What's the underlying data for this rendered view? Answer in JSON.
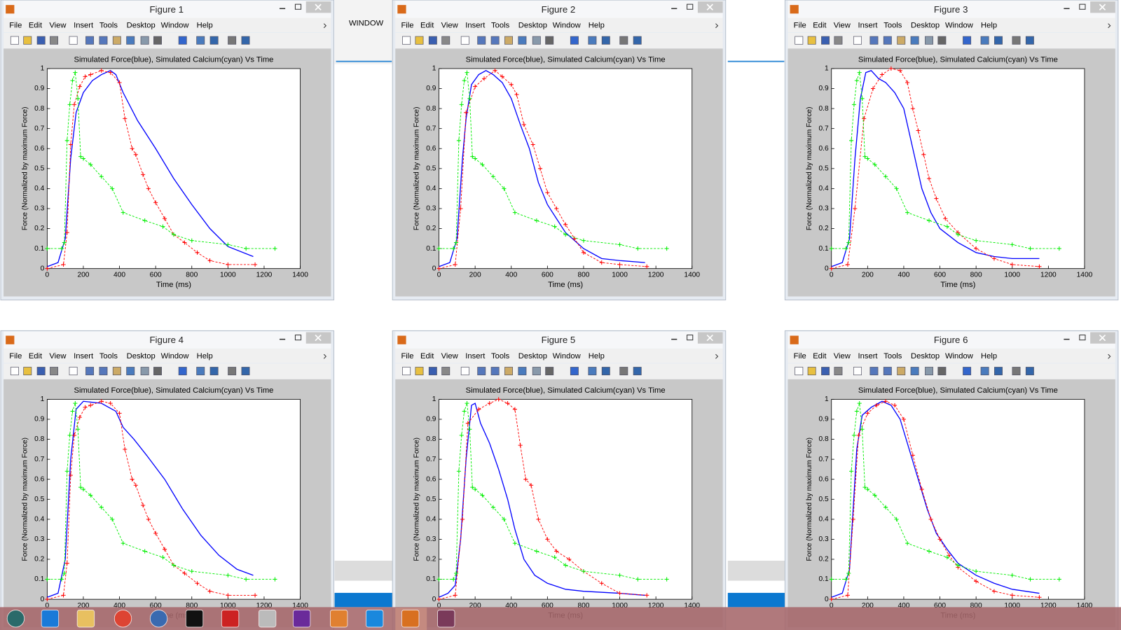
{
  "menu": [
    "File",
    "Edit",
    "View",
    "Insert",
    "Tools",
    "Desktop",
    "Window",
    "Help"
  ],
  "background_label": "WINDOW",
  "axes": {
    "title": "Simulated Force(blue), Simulated Calcium(cyan) Vs Time",
    "xlabel": "Time (ms)",
    "ylabel": "Force (Normalized by maximum Force)",
    "xlim": [
      0,
      1400
    ],
    "ylim": [
      0,
      1
    ],
    "xticks": [
      0,
      200,
      400,
      600,
      800,
      1000,
      1200,
      1400
    ],
    "yticks": [
      0,
      0.1,
      0.2,
      0.3,
      0.4,
      0.5,
      0.6,
      0.7,
      0.8,
      0.9,
      1
    ]
  },
  "windows": [
    {
      "title": "Figure 1",
      "type": "line",
      "series": [
        {
          "color": "#0000ff",
          "line": "solid",
          "x": [
            0,
            60,
            100,
            130,
            160,
            200,
            250,
            300,
            350,
            380,
            420,
            500,
            600,
            700,
            800,
            900,
            1000,
            1140
          ],
          "values": [
            0.01,
            0.03,
            0.15,
            0.55,
            0.78,
            0.88,
            0.94,
            0.97,
            0.99,
            0.97,
            0.88,
            0.74,
            0.6,
            0.45,
            0.32,
            0.2,
            0.11,
            0.06
          ]
        },
        {
          "color": "#ff0000",
          "line": "dashed",
          "marker": "+",
          "x": [
            0,
            90,
            110,
            130,
            150,
            180,
            210,
            240,
            300,
            350,
            400,
            430,
            470,
            490,
            530,
            560,
            600,
            650,
            700,
            760,
            830,
            900,
            1000,
            1150
          ],
          "values": [
            0,
            0.02,
            0.18,
            0.62,
            0.82,
            0.91,
            0.96,
            0.97,
            0.99,
            0.98,
            0.93,
            0.75,
            0.6,
            0.57,
            0.47,
            0.4,
            0.33,
            0.25,
            0.17,
            0.13,
            0.08,
            0.04,
            0.02,
            0.02
          ]
        },
        {
          "color": "#00ee00",
          "line": "dashed",
          "marker": "+",
          "x": [
            0,
            80,
            95,
            110,
            125,
            140,
            155,
            170,
            185,
            200,
            240,
            300,
            360,
            420,
            540,
            640,
            700,
            800,
            1000,
            1100,
            1260
          ],
          "values": [
            0.1,
            0.1,
            0.13,
            0.64,
            0.82,
            0.94,
            0.98,
            0.85,
            0.56,
            0.55,
            0.52,
            0.46,
            0.4,
            0.28,
            0.24,
            0.21,
            0.17,
            0.14,
            0.12,
            0.1,
            0.1
          ]
        }
      ]
    },
    {
      "title": "Figure 2",
      "type": "line",
      "series": [
        {
          "color": "#0000ff",
          "line": "solid",
          "x": [
            0,
            60,
            100,
            130,
            150,
            180,
            220,
            260,
            300,
            350,
            400,
            450,
            500,
            550,
            600,
            650,
            700,
            800,
            900,
            1000,
            1140
          ],
          "values": [
            0.01,
            0.03,
            0.15,
            0.55,
            0.75,
            0.92,
            0.97,
            0.99,
            0.97,
            0.93,
            0.85,
            0.72,
            0.6,
            0.43,
            0.32,
            0.25,
            0.18,
            0.1,
            0.05,
            0.04,
            0.03
          ]
        },
        {
          "color": "#ff0000",
          "line": "dashed",
          "marker": "+",
          "x": [
            0,
            90,
            120,
            150,
            200,
            250,
            310,
            350,
            400,
            430,
            470,
            520,
            560,
            600,
            650,
            700,
            750,
            800,
            900,
            1000,
            1150
          ],
          "values": [
            0,
            0.02,
            0.3,
            0.78,
            0.91,
            0.95,
            0.99,
            0.96,
            0.92,
            0.87,
            0.72,
            0.62,
            0.5,
            0.38,
            0.3,
            0.22,
            0.15,
            0.08,
            0.03,
            0.02,
            0.01
          ]
        },
        {
          "color": "#00ee00",
          "line": "dashed",
          "marker": "+",
          "x": [
            0,
            80,
            95,
            110,
            125,
            140,
            155,
            170,
            185,
            200,
            240,
            300,
            360,
            420,
            540,
            640,
            700,
            800,
            1000,
            1100,
            1260
          ],
          "values": [
            0.1,
            0.1,
            0.13,
            0.64,
            0.82,
            0.94,
            0.98,
            0.85,
            0.56,
            0.55,
            0.52,
            0.46,
            0.4,
            0.28,
            0.24,
            0.21,
            0.17,
            0.14,
            0.12,
            0.1,
            0.1
          ]
        }
      ]
    },
    {
      "title": "Figure 3",
      "type": "line",
      "series": [
        {
          "color": "#0000ff",
          "line": "solid",
          "x": [
            0,
            60,
            100,
            130,
            160,
            190,
            220,
            260,
            300,
            350,
            400,
            450,
            500,
            550,
            600,
            700,
            800,
            900,
            1000,
            1150
          ],
          "values": [
            0.01,
            0.03,
            0.15,
            0.55,
            0.85,
            0.98,
            0.99,
            0.95,
            0.93,
            0.88,
            0.8,
            0.6,
            0.4,
            0.28,
            0.2,
            0.13,
            0.08,
            0.06,
            0.05,
            0.05
          ]
        },
        {
          "color": "#ff0000",
          "line": "dashed",
          "marker": "+",
          "x": [
            0,
            90,
            130,
            180,
            230,
            280,
            330,
            380,
            420,
            450,
            480,
            510,
            540,
            580,
            630,
            700,
            800,
            900,
            1000,
            1150
          ],
          "values": [
            0,
            0.02,
            0.3,
            0.75,
            0.9,
            0.97,
            1,
            0.99,
            0.93,
            0.8,
            0.69,
            0.57,
            0.45,
            0.35,
            0.25,
            0.18,
            0.1,
            0.05,
            0.02,
            0.01
          ]
        },
        {
          "color": "#00ee00",
          "line": "dashed",
          "marker": "+",
          "x": [
            0,
            80,
            95,
            110,
            125,
            140,
            155,
            170,
            185,
            200,
            240,
            300,
            360,
            420,
            540,
            640,
            700,
            800,
            1000,
            1100,
            1260
          ],
          "values": [
            0.1,
            0.1,
            0.13,
            0.64,
            0.82,
            0.94,
            0.98,
            0.85,
            0.56,
            0.55,
            0.52,
            0.46,
            0.4,
            0.28,
            0.24,
            0.21,
            0.17,
            0.14,
            0.12,
            0.1,
            0.1
          ]
        }
      ]
    },
    {
      "title": "Figure 4",
      "type": "line",
      "series": [
        {
          "color": "#0000ff",
          "line": "solid",
          "x": [
            0,
            60,
            100,
            130,
            160,
            200,
            300,
            380,
            420,
            480,
            550,
            650,
            750,
            850,
            950,
            1050,
            1140
          ],
          "values": [
            0.01,
            0.03,
            0.2,
            0.7,
            0.95,
            0.99,
            0.98,
            0.94,
            0.86,
            0.8,
            0.72,
            0.6,
            0.45,
            0.32,
            0.22,
            0.15,
            0.12
          ]
        },
        {
          "color": "#ff0000",
          "line": "dashed",
          "marker": "+",
          "x": [
            0,
            90,
            110,
            130,
            150,
            180,
            210,
            240,
            300,
            350,
            400,
            430,
            470,
            490,
            530,
            560,
            600,
            650,
            700,
            760,
            830,
            900,
            1000,
            1150
          ],
          "values": [
            0,
            0.02,
            0.18,
            0.62,
            0.82,
            0.91,
            0.96,
            0.97,
            0.99,
            0.98,
            0.93,
            0.75,
            0.6,
            0.57,
            0.47,
            0.4,
            0.33,
            0.25,
            0.17,
            0.13,
            0.08,
            0.04,
            0.02,
            0.02
          ]
        },
        {
          "color": "#00ee00",
          "line": "dashed",
          "marker": "+",
          "x": [
            0,
            80,
            95,
            110,
            125,
            140,
            155,
            170,
            185,
            200,
            240,
            300,
            360,
            420,
            540,
            640,
            700,
            800,
            1000,
            1100,
            1260
          ],
          "values": [
            0.1,
            0.1,
            0.13,
            0.64,
            0.82,
            0.94,
            0.98,
            0.85,
            0.56,
            0.55,
            0.52,
            0.46,
            0.4,
            0.28,
            0.24,
            0.21,
            0.17,
            0.14,
            0.12,
            0.1,
            0.1
          ]
        }
      ]
    },
    {
      "title": "Figure 5",
      "type": "line",
      "series": [
        {
          "color": "#0000ff",
          "line": "solid",
          "x": [
            0,
            50,
            90,
            120,
            150,
            180,
            200,
            230,
            280,
            330,
            380,
            420,
            470,
            530,
            600,
            700,
            800,
            1000,
            1140
          ],
          "values": [
            0.01,
            0.03,
            0.07,
            0.3,
            0.7,
            0.97,
            0.98,
            0.88,
            0.78,
            0.65,
            0.5,
            0.35,
            0.2,
            0.12,
            0.08,
            0.05,
            0.04,
            0.03,
            0.02
          ]
        },
        {
          "color": "#ff0000",
          "line": "dashed",
          "marker": "+",
          "x": [
            0,
            90,
            130,
            160,
            220,
            280,
            330,
            380,
            420,
            450,
            480,
            510,
            550,
            600,
            650,
            720,
            800,
            900,
            1000,
            1150
          ],
          "values": [
            0,
            0.02,
            0.4,
            0.88,
            0.95,
            0.98,
            1,
            0.98,
            0.95,
            0.77,
            0.6,
            0.57,
            0.4,
            0.3,
            0.24,
            0.2,
            0.14,
            0.08,
            0.03,
            0.02
          ]
        },
        {
          "color": "#00ee00",
          "line": "dashed",
          "marker": "+",
          "x": [
            0,
            80,
            95,
            110,
            125,
            140,
            155,
            170,
            185,
            200,
            240,
            300,
            360,
            420,
            540,
            640,
            700,
            800,
            1000,
            1100,
            1260
          ],
          "values": [
            0.1,
            0.1,
            0.13,
            0.64,
            0.82,
            0.94,
            0.98,
            0.85,
            0.56,
            0.55,
            0.52,
            0.46,
            0.4,
            0.28,
            0.24,
            0.21,
            0.17,
            0.14,
            0.12,
            0.1,
            0.1
          ]
        }
      ]
    },
    {
      "title": "Figure 6",
      "type": "line",
      "series": [
        {
          "color": "#0000ff",
          "line": "solid",
          "x": [
            0,
            60,
            100,
            140,
            170,
            220,
            280,
            330,
            380,
            430,
            480,
            530,
            580,
            640,
            700,
            800,
            900,
            1000,
            1150
          ],
          "values": [
            0.01,
            0.03,
            0.15,
            0.75,
            0.92,
            0.96,
            0.99,
            0.97,
            0.9,
            0.75,
            0.6,
            0.45,
            0.33,
            0.25,
            0.18,
            0.12,
            0.08,
            0.05,
            0.03
          ]
        },
        {
          "color": "#ff0000",
          "line": "dashed",
          "marker": "+",
          "x": [
            0,
            90,
            120,
            150,
            200,
            250,
            300,
            350,
            400,
            450,
            500,
            550,
            600,
            650,
            700,
            800,
            900,
            1000,
            1150
          ],
          "values": [
            0,
            0.02,
            0.4,
            0.82,
            0.93,
            0.97,
            0.99,
            0.97,
            0.9,
            0.72,
            0.55,
            0.4,
            0.3,
            0.22,
            0.16,
            0.09,
            0.04,
            0.02,
            0.01
          ]
        },
        {
          "color": "#00ee00",
          "line": "dashed",
          "marker": "+",
          "x": [
            0,
            80,
            95,
            110,
            125,
            140,
            155,
            170,
            185,
            200,
            240,
            300,
            360,
            420,
            540,
            640,
            700,
            800,
            1000,
            1100,
            1260
          ],
          "values": [
            0.1,
            0.1,
            0.13,
            0.64,
            0.82,
            0.94,
            0.98,
            0.85,
            0.56,
            0.55,
            0.52,
            0.46,
            0.4,
            0.28,
            0.24,
            0.21,
            0.17,
            0.14,
            0.12,
            0.1,
            0.1
          ]
        }
      ]
    }
  ]
}
